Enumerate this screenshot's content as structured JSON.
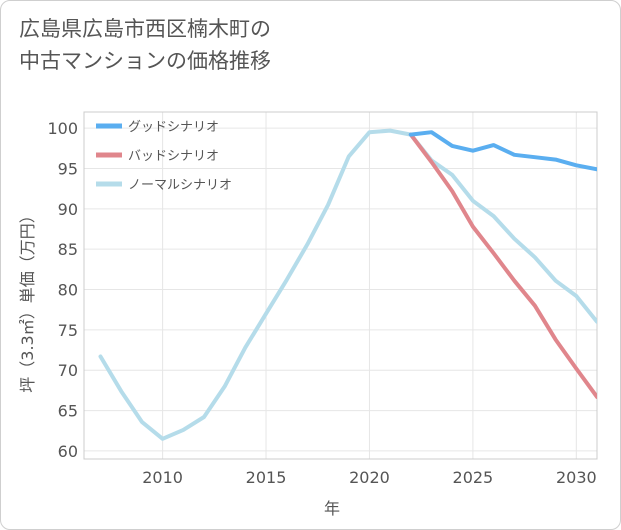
{
  "title": {
    "line1": "広島県広島市西区楠木町の",
    "line2": "中古マンションの価格推移"
  },
  "chart_data": {
    "type": "line",
    "xlabel": "年",
    "ylabel": "坪（3.3㎡）単価（万円）",
    "xlim": [
      2006.2,
      2031
    ],
    "ylim": [
      59,
      102
    ],
    "xticks": [
      2010,
      2015,
      2020,
      2025,
      2030
    ],
    "yticks": [
      60,
      65,
      70,
      75,
      80,
      85,
      90,
      95,
      100
    ],
    "grid": true,
    "legend_position": "top-left",
    "series": [
      {
        "name": "グッドシナリオ",
        "color": "#5aaef0",
        "points": [
          [
            2022,
            99.2
          ],
          [
            2023,
            99.5
          ],
          [
            2024,
            97.8
          ],
          [
            2025,
            97.2
          ],
          [
            2026,
            97.9
          ],
          [
            2027,
            96.7
          ],
          [
            2028,
            96.4
          ],
          [
            2029,
            96.1
          ],
          [
            2030,
            95.4
          ],
          [
            2031,
            94.9
          ]
        ]
      },
      {
        "name": "バッドシナリオ",
        "color": "#e0868c",
        "points": [
          [
            2022,
            99.2
          ],
          [
            2023,
            95.8
          ],
          [
            2024,
            92.2
          ],
          [
            2025,
            87.8
          ],
          [
            2026,
            84.5
          ],
          [
            2027,
            81.1
          ],
          [
            2028,
            78.0
          ],
          [
            2029,
            73.8
          ],
          [
            2030,
            70.2
          ],
          [
            2031,
            66.7
          ]
        ]
      },
      {
        "name": "ノーマルシナリオ",
        "color": "#b5dcea",
        "points": [
          [
            2007,
            71.7
          ],
          [
            2008,
            67.4
          ],
          [
            2009,
            63.6
          ],
          [
            2010,
            61.5
          ],
          [
            2011,
            62.6
          ],
          [
            2012,
            64.2
          ],
          [
            2013,
            68.0
          ],
          [
            2014,
            72.8
          ],
          [
            2015,
            77.0
          ],
          [
            2016,
            81.2
          ],
          [
            2017,
            85.6
          ],
          [
            2018,
            90.5
          ],
          [
            2019,
            96.5
          ],
          [
            2020,
            99.5
          ],
          [
            2021,
            99.7
          ],
          [
            2022,
            99.2
          ],
          [
            2023,
            96.0
          ],
          [
            2024,
            94.2
          ],
          [
            2025,
            91.0
          ],
          [
            2026,
            89.1
          ],
          [
            2027,
            86.3
          ],
          [
            2028,
            84.0
          ],
          [
            2029,
            81.1
          ],
          [
            2030,
            79.2
          ],
          [
            2031,
            76.0
          ]
        ]
      }
    ]
  }
}
